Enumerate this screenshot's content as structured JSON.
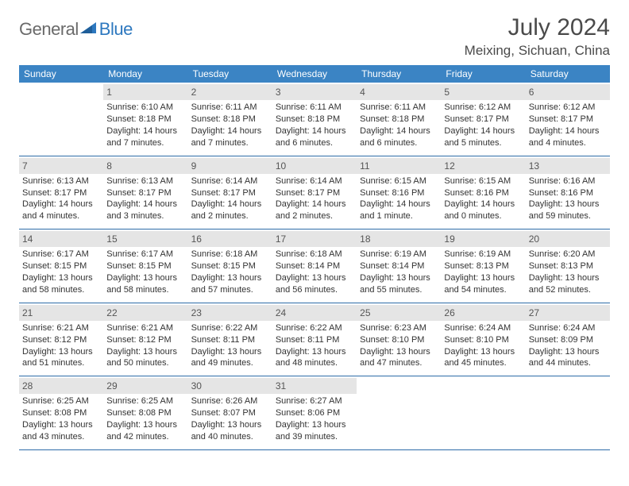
{
  "logo": {
    "text1": "General",
    "text2": "Blue"
  },
  "title": "July 2024",
  "location": "Meixing, Sichuan, China",
  "colors": {
    "header_bg": "#3b84c4",
    "header_text": "#ffffff",
    "daynum_bg": "#e5e5e5",
    "border": "#2d6ca8",
    "body_text": "#333333",
    "logo_gray": "#6a6a6a",
    "logo_blue": "#2d78bf"
  },
  "day_names": [
    "Sunday",
    "Monday",
    "Tuesday",
    "Wednesday",
    "Thursday",
    "Friday",
    "Saturday"
  ],
  "weeks": [
    [
      {
        "n": "",
        "sunrise": "",
        "sunset": "",
        "daylight": ""
      },
      {
        "n": "1",
        "sunrise": "Sunrise: 6:10 AM",
        "sunset": "Sunset: 8:18 PM",
        "daylight": "Daylight: 14 hours and 7 minutes."
      },
      {
        "n": "2",
        "sunrise": "Sunrise: 6:11 AM",
        "sunset": "Sunset: 8:18 PM",
        "daylight": "Daylight: 14 hours and 7 minutes."
      },
      {
        "n": "3",
        "sunrise": "Sunrise: 6:11 AM",
        "sunset": "Sunset: 8:18 PM",
        "daylight": "Daylight: 14 hours and 6 minutes."
      },
      {
        "n": "4",
        "sunrise": "Sunrise: 6:11 AM",
        "sunset": "Sunset: 8:18 PM",
        "daylight": "Daylight: 14 hours and 6 minutes."
      },
      {
        "n": "5",
        "sunrise": "Sunrise: 6:12 AM",
        "sunset": "Sunset: 8:17 PM",
        "daylight": "Daylight: 14 hours and 5 minutes."
      },
      {
        "n": "6",
        "sunrise": "Sunrise: 6:12 AM",
        "sunset": "Sunset: 8:17 PM",
        "daylight": "Daylight: 14 hours and 4 minutes."
      }
    ],
    [
      {
        "n": "7",
        "sunrise": "Sunrise: 6:13 AM",
        "sunset": "Sunset: 8:17 PM",
        "daylight": "Daylight: 14 hours and 4 minutes."
      },
      {
        "n": "8",
        "sunrise": "Sunrise: 6:13 AM",
        "sunset": "Sunset: 8:17 PM",
        "daylight": "Daylight: 14 hours and 3 minutes."
      },
      {
        "n": "9",
        "sunrise": "Sunrise: 6:14 AM",
        "sunset": "Sunset: 8:17 PM",
        "daylight": "Daylight: 14 hours and 2 minutes."
      },
      {
        "n": "10",
        "sunrise": "Sunrise: 6:14 AM",
        "sunset": "Sunset: 8:17 PM",
        "daylight": "Daylight: 14 hours and 2 minutes."
      },
      {
        "n": "11",
        "sunrise": "Sunrise: 6:15 AM",
        "sunset": "Sunset: 8:16 PM",
        "daylight": "Daylight: 14 hours and 1 minute."
      },
      {
        "n": "12",
        "sunrise": "Sunrise: 6:15 AM",
        "sunset": "Sunset: 8:16 PM",
        "daylight": "Daylight: 14 hours and 0 minutes."
      },
      {
        "n": "13",
        "sunrise": "Sunrise: 6:16 AM",
        "sunset": "Sunset: 8:16 PM",
        "daylight": "Daylight: 13 hours and 59 minutes."
      }
    ],
    [
      {
        "n": "14",
        "sunrise": "Sunrise: 6:17 AM",
        "sunset": "Sunset: 8:15 PM",
        "daylight": "Daylight: 13 hours and 58 minutes."
      },
      {
        "n": "15",
        "sunrise": "Sunrise: 6:17 AM",
        "sunset": "Sunset: 8:15 PM",
        "daylight": "Daylight: 13 hours and 58 minutes."
      },
      {
        "n": "16",
        "sunrise": "Sunrise: 6:18 AM",
        "sunset": "Sunset: 8:15 PM",
        "daylight": "Daylight: 13 hours and 57 minutes."
      },
      {
        "n": "17",
        "sunrise": "Sunrise: 6:18 AM",
        "sunset": "Sunset: 8:14 PM",
        "daylight": "Daylight: 13 hours and 56 minutes."
      },
      {
        "n": "18",
        "sunrise": "Sunrise: 6:19 AM",
        "sunset": "Sunset: 8:14 PM",
        "daylight": "Daylight: 13 hours and 55 minutes."
      },
      {
        "n": "19",
        "sunrise": "Sunrise: 6:19 AM",
        "sunset": "Sunset: 8:13 PM",
        "daylight": "Daylight: 13 hours and 54 minutes."
      },
      {
        "n": "20",
        "sunrise": "Sunrise: 6:20 AM",
        "sunset": "Sunset: 8:13 PM",
        "daylight": "Daylight: 13 hours and 52 minutes."
      }
    ],
    [
      {
        "n": "21",
        "sunrise": "Sunrise: 6:21 AM",
        "sunset": "Sunset: 8:12 PM",
        "daylight": "Daylight: 13 hours and 51 minutes."
      },
      {
        "n": "22",
        "sunrise": "Sunrise: 6:21 AM",
        "sunset": "Sunset: 8:12 PM",
        "daylight": "Daylight: 13 hours and 50 minutes."
      },
      {
        "n": "23",
        "sunrise": "Sunrise: 6:22 AM",
        "sunset": "Sunset: 8:11 PM",
        "daylight": "Daylight: 13 hours and 49 minutes."
      },
      {
        "n": "24",
        "sunrise": "Sunrise: 6:22 AM",
        "sunset": "Sunset: 8:11 PM",
        "daylight": "Daylight: 13 hours and 48 minutes."
      },
      {
        "n": "25",
        "sunrise": "Sunrise: 6:23 AM",
        "sunset": "Sunset: 8:10 PM",
        "daylight": "Daylight: 13 hours and 47 minutes."
      },
      {
        "n": "26",
        "sunrise": "Sunrise: 6:24 AM",
        "sunset": "Sunset: 8:10 PM",
        "daylight": "Daylight: 13 hours and 45 minutes."
      },
      {
        "n": "27",
        "sunrise": "Sunrise: 6:24 AM",
        "sunset": "Sunset: 8:09 PM",
        "daylight": "Daylight: 13 hours and 44 minutes."
      }
    ],
    [
      {
        "n": "28",
        "sunrise": "Sunrise: 6:25 AM",
        "sunset": "Sunset: 8:08 PM",
        "daylight": "Daylight: 13 hours and 43 minutes."
      },
      {
        "n": "29",
        "sunrise": "Sunrise: 6:25 AM",
        "sunset": "Sunset: 8:08 PM",
        "daylight": "Daylight: 13 hours and 42 minutes."
      },
      {
        "n": "30",
        "sunrise": "Sunrise: 6:26 AM",
        "sunset": "Sunset: 8:07 PM",
        "daylight": "Daylight: 13 hours and 40 minutes."
      },
      {
        "n": "31",
        "sunrise": "Sunrise: 6:27 AM",
        "sunset": "Sunset: 8:06 PM",
        "daylight": "Daylight: 13 hours and 39 minutes."
      },
      {
        "n": "",
        "sunrise": "",
        "sunset": "",
        "daylight": ""
      },
      {
        "n": "",
        "sunrise": "",
        "sunset": "",
        "daylight": ""
      },
      {
        "n": "",
        "sunrise": "",
        "sunset": "",
        "daylight": ""
      }
    ]
  ]
}
